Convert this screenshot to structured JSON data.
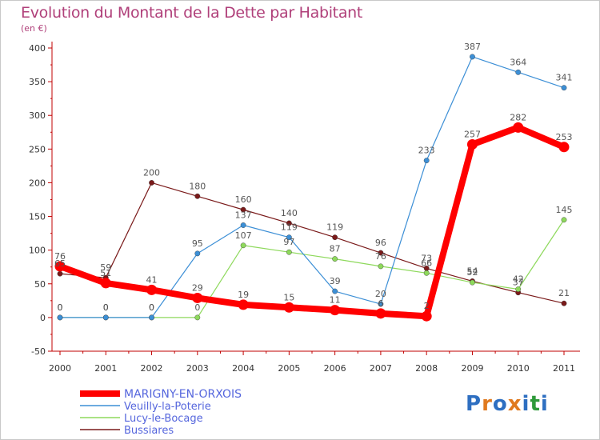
{
  "header": {
    "title": "Evolution du Montant de la Dette par Habitant",
    "subtitle": "(en €)"
  },
  "logo": {
    "text": "Proxiti",
    "colors": [
      "#2e6fc1",
      "#e07a1f",
      "#2e6fc1",
      "#e07a1f",
      "#2e6fc1",
      "#2e9a3a",
      "#2e6fc1"
    ]
  },
  "chart_data": {
    "type": "line",
    "title": "Evolution du Montant de la Dette par Habitant",
    "ylabel": "(en €)",
    "x": [
      "2000",
      "2001",
      "2002",
      "2003",
      "2004",
      "2005",
      "2006",
      "2007",
      "2008",
      "2009",
      "2010",
      "2011"
    ],
    "ylim": [
      -50,
      400
    ],
    "yticks": [
      -50,
      0,
      50,
      100,
      150,
      200,
      250,
      300,
      350,
      400
    ],
    "grid": false,
    "legend_position": "bottom-left",
    "series": [
      {
        "name": "MARIGNY-EN-ORXOIS",
        "color": "#ff0000",
        "values": [
          76,
          51,
          41,
          29,
          19,
          15,
          11,
          6,
          2,
          257,
          282,
          253
        ],
        "labels": [
          "76",
          "51",
          "41",
          "29",
          "19",
          "15",
          "11",
          "6",
          "2",
          "257",
          "282",
          "253"
        ]
      },
      {
        "name": "Veuilly-la-Poterie",
        "color": "#3c8fd6",
        "values": [
          0,
          0,
          0,
          95,
          137,
          119,
          39,
          20,
          233,
          387,
          364,
          341
        ],
        "labels": [
          "0",
          "0",
          "0",
          "95",
          "137",
          "119",
          "39",
          "20",
          "233",
          "387",
          "364",
          "341"
        ]
      },
      {
        "name": "Lucy-le-Bocage",
        "color": "#8ed95c",
        "values": [
          0,
          0,
          0,
          0,
          107,
          97,
          87,
          76,
          66,
          52,
          42,
          145
        ],
        "labels": [
          "0",
          "0",
          "0",
          "0",
          "107",
          "97",
          "87",
          "76",
          "66",
          "52",
          "42",
          "145"
        ]
      },
      {
        "name": "Bussiares",
        "color": "#7a1a1a",
        "values": [
          65,
          59,
          200,
          180,
          160,
          140,
          119,
          96,
          73,
          54,
          37,
          21
        ],
        "labels": [
          "65",
          "59",
          "200",
          "180",
          "160",
          "140",
          "119",
          "96",
          "73",
          "54",
          "37",
          "21"
        ]
      }
    ]
  }
}
